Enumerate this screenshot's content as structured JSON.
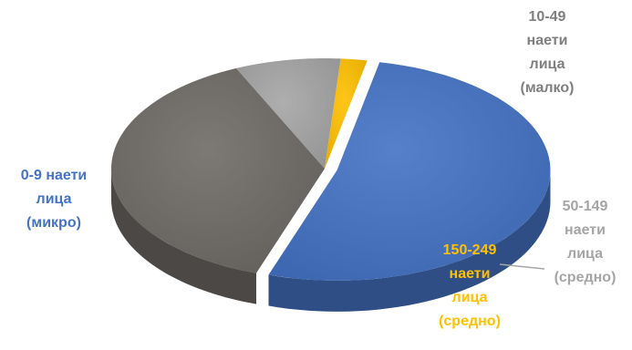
{
  "chart_data": {
    "type": "pie",
    "title": "",
    "categories": [
      "0-9 наети лица (микро)",
      "10-49 наети лица (малко)",
      "50-149 наети лица (средно)",
      "150-249 наети лица (средно)"
    ],
    "values": [
      52,
      38,
      8,
      2
    ],
    "colors": [
      "#4472c4",
      "#6e6a66",
      "#a5a5a5",
      "#ffc000"
    ],
    "label_colors": [
      "#4472c4",
      "#7f7f7f",
      "#a5a5a5",
      "#ffc000"
    ],
    "labels": [
      [
        "0-9 наети",
        "лица",
        "(микро)"
      ],
      [
        "10-49",
        "наети",
        "лица",
        "(малко)"
      ],
      [
        "50-149",
        "наети",
        "лица",
        "(средно)"
      ],
      [
        "150-249",
        "наети",
        "лица",
        "(средно)"
      ]
    ],
    "style": "3d-exploded-pie",
    "legend": "none"
  }
}
